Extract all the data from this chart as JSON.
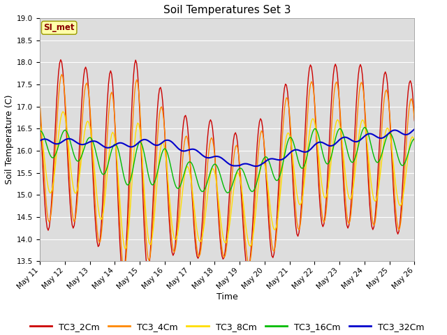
{
  "title": "Soil Temperatures Set 3",
  "xlabel": "Time",
  "ylabel": "Soil Temperature (C)",
  "ylim": [
    13.5,
    19.0
  ],
  "yticks": [
    13.5,
    14.0,
    14.5,
    15.0,
    15.5,
    16.0,
    16.5,
    17.0,
    17.5,
    18.0,
    18.5,
    19.0
  ],
  "start_day": 11,
  "end_day": 26,
  "xtick_days": [
    11,
    12,
    13,
    14,
    15,
    16,
    17,
    18,
    19,
    20,
    21,
    22,
    23,
    24,
    25,
    26
  ],
  "series_colors": [
    "#cc0000",
    "#ff8800",
    "#ffdd00",
    "#00bb00",
    "#0000cc"
  ],
  "series_names": [
    "TC3_2Cm",
    "TC3_4Cm",
    "TC3_8Cm",
    "TC3_16Cm",
    "TC3_32Cm"
  ],
  "line_widths": [
    1.0,
    1.0,
    1.0,
    1.0,
    1.5
  ],
  "annotation_text": "SI_met",
  "bg_color": "#dddddd",
  "plot_bg_color": "#dddddd",
  "fig_bg_color": "#ffffff",
  "grid_color": "#ffffff",
  "title_fontsize": 11,
  "axis_fontsize": 9,
  "tick_fontsize": 7.5
}
